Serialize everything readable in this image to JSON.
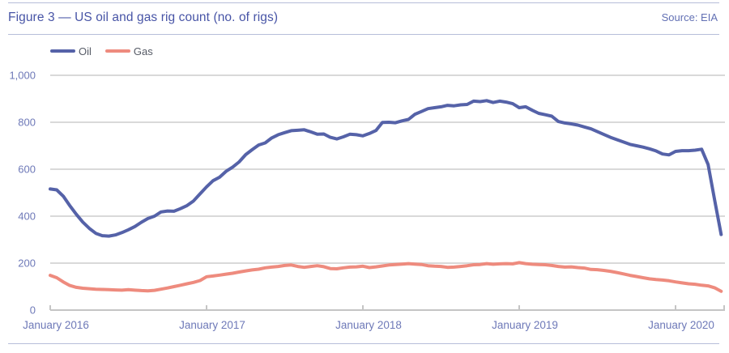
{
  "header": {
    "title": "Figure 3 — US oil and gas rig count (no. of rigs)",
    "source": "Source: EIA"
  },
  "legend": [
    {
      "label": "Oil",
      "color": "#5562a8"
    },
    {
      "label": "Gas",
      "color": "#ee8b7e"
    }
  ],
  "colors": {
    "accent_indigo": "#4754a6",
    "axis_label": "#6e79b8",
    "gridline": "#d9d9d9",
    "axis_line": "#c5c5c5",
    "divider": "#b7bed9",
    "oil_line": "#5562a8",
    "gas_line": "#ee8b7e"
  },
  "chart_data": {
    "type": "line",
    "title": "Figure 3 — US oil and gas rig count (no. of rigs)",
    "source": "Source: EIA",
    "unit": "no. of rigs",
    "x_start": "2016-01",
    "x_interval": "biweekly",
    "x_tick_labels": [
      "January 2016",
      "January 2017",
      "January 2018",
      "January 2019",
      "January 2020"
    ],
    "ylim": [
      0,
      1000
    ],
    "y_ticks": [
      {
        "value": 0,
        "label": "0"
      },
      {
        "value": 200,
        "label": "200"
      },
      {
        "value": 400,
        "label": "400"
      },
      {
        "value": 600,
        "label": "600"
      },
      {
        "value": 800,
        "label": "800"
      },
      {
        "value": 1000,
        "label": "1,000"
      }
    ],
    "grid": "horizontal",
    "legend_position": "top-left",
    "series": [
      {
        "name": "Oil",
        "color": "#5562a8",
        "values": [
          516,
          512,
          485,
          445,
          408,
          375,
          348,
          327,
          317,
          315,
          320,
          330,
          342,
          356,
          374,
          390,
          400,
          418,
          422,
          421,
          432,
          445,
          465,
          495,
          525,
          551,
          566,
          591,
          609,
          631,
          662,
          683,
          703,
          712,
          733,
          747,
          756,
          764,
          766,
          768,
          759,
          749,
          750,
          736,
          729,
          738,
          749,
          747,
          742,
          752,
          765,
          799,
          800,
          798,
          806,
          812,
          834,
          846,
          858,
          862,
          866,
          872,
          870,
          874,
          876,
          890,
          888,
          892,
          884,
          890,
          886,
          879,
          862,
          866,
          851,
          838,
          832,
          826,
          803,
          797,
          793,
          788,
          780,
          772,
          760,
          748,
          736,
          726,
          716,
          706,
          700,
          694,
          687,
          678,
          665,
          661,
          676,
          679,
          679,
          681,
          685,
          620,
          470,
          322
        ]
      },
      {
        "name": "Gas",
        "color": "#ee8b7e",
        "values": [
          148,
          138,
          120,
          105,
          97,
          93,
          91,
          89,
          88,
          87,
          86,
          85,
          87,
          85,
          83,
          82,
          84,
          89,
          94,
          100,
          106,
          112,
          118,
          126,
          142,
          145,
          149,
          153,
          157,
          162,
          167,
          171,
          174,
          180,
          183,
          186,
          190,
          192,
          186,
          182,
          186,
          189,
          185,
          177,
          176,
          180,
          183,
          184,
          187,
          181,
          184,
          188,
          192,
          194,
          196,
          198,
          196,
          194,
          189,
          187,
          186,
          182,
          183,
          186,
          189,
          193,
          194,
          198,
          195,
          197,
          198,
          197,
          202,
          198,
          195,
          194,
          193,
          190,
          186,
          183,
          184,
          181,
          179,
          173,
          172,
          169,
          165,
          160,
          154,
          148,
          143,
          138,
          133,
          130,
          128,
          125,
          120,
          116,
          112,
          110,
          106,
          103,
          95,
          80
        ]
      }
    ]
  }
}
